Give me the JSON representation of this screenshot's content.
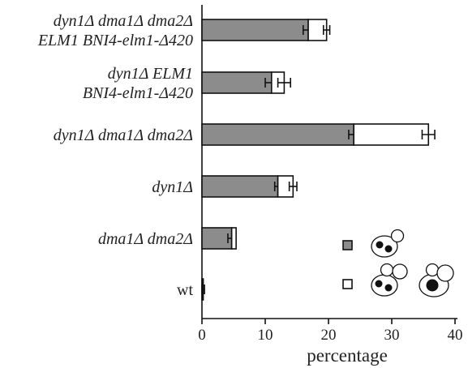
{
  "chart_data": {
    "type": "bar",
    "orientation": "horizontal",
    "stacked": true,
    "title": "",
    "xlabel": "percentage",
    "ylabel": "",
    "xlim": [
      0,
      40
    ],
    "xticks": [
      0,
      10,
      20,
      30,
      40
    ],
    "grid": false,
    "categories": [
      {
        "lines": [
          "dyn1Δ dma1Δ dma2Δ",
          "ELM1 BNI4-elm1-Δ420"
        ],
        "italic": true
      },
      {
        "lines": [
          "dyn1Δ ELM1",
          "BNI4-elm1-Δ420"
        ],
        "italic": true
      },
      {
        "lines": [
          "dyn1Δ dma1Δ dma2Δ"
        ],
        "italic": true
      },
      {
        "lines": [
          "dyn1Δ"
        ],
        "italic": true
      },
      {
        "lines": [
          "dma1Δ dma2Δ"
        ],
        "italic": true
      },
      {
        "lines": [
          "wt"
        ],
        "italic": false
      }
    ],
    "series": [
      {
        "fill": "#8c8c8c",
        "values": [
          16.8,
          11.0,
          24.0,
          12.0,
          4.7,
          0.2
        ],
        "errors": [
          0.8,
          1.0,
          0.8,
          0.5,
          0.6,
          0.2
        ]
      },
      {
        "fill": "#ffffff",
        "values": [
          2.9,
          2.0,
          11.8,
          2.4,
          0.7,
          0.0
        ],
        "errors": [
          0.5,
          1.0,
          1.0,
          0.6,
          0.0,
          0.0
        ]
      }
    ],
    "legend": {
      "position": "bottom-right",
      "entries": [
        {
          "swatch": "#8c8c8c",
          "icon": "mother-cell-two-nuclei-with-bud-icon"
        },
        {
          "swatch": "#ffffff",
          "icon": "mother-cell-two-nuclei-large-bud-and-binucleate-cell-icon"
        }
      ]
    }
  }
}
